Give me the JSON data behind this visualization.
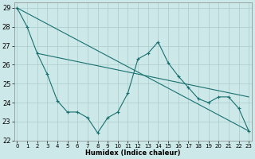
{
  "xlabel": "Humidex (Indice chaleur)",
  "bg_color": "#cce8e8",
  "grid_color": "#aacccc",
  "line_color": "#1a7070",
  "yticks": [
    22,
    23,
    24,
    25,
    26,
    27,
    28,
    29
  ],
  "xticks": [
    0,
    1,
    2,
    3,
    4,
    5,
    6,
    7,
    8,
    9,
    10,
    11,
    12,
    13,
    14,
    15,
    16,
    17,
    18,
    19,
    20,
    21,
    22,
    23
  ],
  "series1_x": [
    0,
    1,
    2,
    3,
    4,
    5,
    6,
    7,
    8,
    9,
    10,
    11,
    12,
    13,
    14,
    15,
    16,
    17,
    18,
    19,
    20,
    21,
    22,
    23
  ],
  "series1_y": [
    29,
    28,
    26.6,
    25.5,
    24.1,
    23.5,
    23.5,
    23.2,
    22.4,
    23.2,
    23.5,
    24.5,
    26.3,
    26.6,
    27.2,
    26.1,
    25.4,
    24.8,
    24.2,
    24.0,
    24.3,
    24.3,
    23.7,
    22.5
  ],
  "series2_x": [
    0,
    23
  ],
  "series2_y": [
    29.0,
    22.5
  ],
  "series3_x": [
    2,
    23
  ],
  "series3_y": [
    26.6,
    24.3
  ]
}
